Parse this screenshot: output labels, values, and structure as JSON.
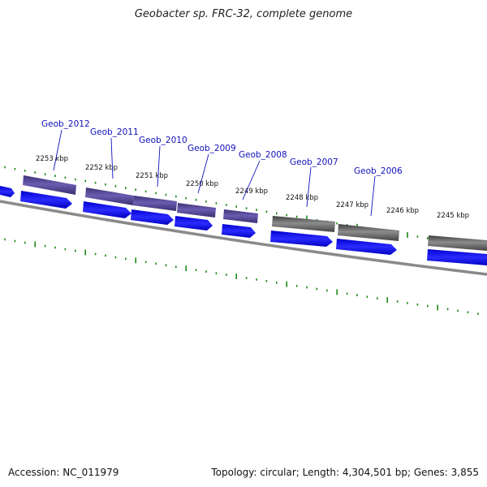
{
  "title": "Geobacter sp. FRC-32, complete genome",
  "footer": {
    "accession": "Accession: NC_011979",
    "summary": "Topology: circular; Length: 4,304,501 bp; Genes: 3,855"
  },
  "colors": {
    "cds": "#1a1aee",
    "gene_blue": "#4a3d8c",
    "gene_gray": "#5a5a5a",
    "backbone": "#8a8a8a",
    "tick": "#1a8a1a",
    "label": "#1111bb"
  },
  "tick_labels": [
    "2253 kbp",
    "2252 kbp",
    "2251 kbp",
    "2250 kbp",
    "2249 kbp",
    "2248 kbp",
    "2247 kbp",
    "2246 kbp",
    "2245 kbp"
  ],
  "gene_labels": [
    "Geob_2012",
    "Geob_2011",
    "Geob_2010",
    "Geob_2009",
    "Geob_2008",
    "Geob_2007",
    "Geob_2006"
  ]
}
